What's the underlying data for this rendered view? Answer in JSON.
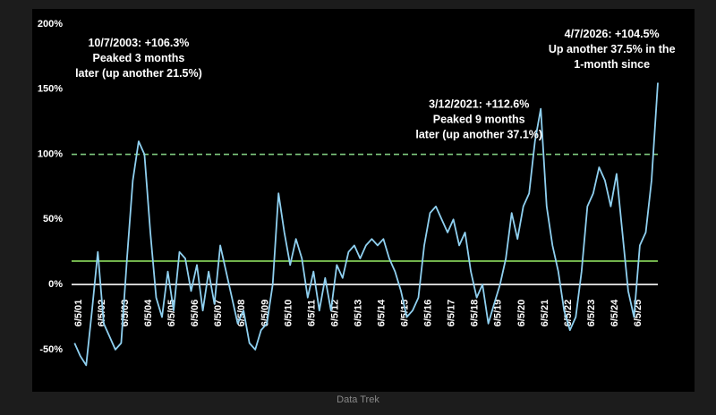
{
  "chart_data": {
    "type": "line",
    "source": "Data Trek",
    "annotations": [
      {
        "lines": [
          "10/7/2003: +106.3%",
          "Peaked 3 months",
          "later (up another 21.5%)"
        ],
        "x": 2004.0,
        "y": 185
      },
      {
        "lines": [
          "3/12/2021: +112.6%",
          "Peaked 9 months",
          "later (up another 37.1%)"
        ],
        "x": 2018.6,
        "y": 138
      },
      {
        "lines": [
          "4/7/2026: +104.5%",
          "Up another 37.5% in the",
          "1-month since"
        ],
        "x": 2024.3,
        "y": 192
      }
    ],
    "x": [
      2001.25,
      2001.5,
      2001.75,
      2002.0,
      2002.25,
      2002.5,
      2002.75,
      2003.0,
      2003.25,
      2003.5,
      2003.75,
      2004.0,
      2004.25,
      2004.5,
      2004.75,
      2005.0,
      2005.25,
      2005.5,
      2005.75,
      2006.0,
      2006.25,
      2006.5,
      2006.75,
      2007.0,
      2007.25,
      2007.5,
      2007.75,
      2008.0,
      2008.25,
      2008.5,
      2008.75,
      2009.0,
      2009.25,
      2009.5,
      2009.75,
      2010.0,
      2010.25,
      2010.5,
      2010.75,
      2011.0,
      2011.25,
      2011.5,
      2011.75,
      2012.0,
      2012.25,
      2012.5,
      2012.75,
      2013.0,
      2013.25,
      2013.5,
      2013.75,
      2014.0,
      2014.25,
      2014.5,
      2014.75,
      2015.0,
      2015.25,
      2015.5,
      2015.75,
      2016.0,
      2016.25,
      2016.5,
      2016.75,
      2017.0,
      2017.25,
      2017.5,
      2017.75,
      2018.0,
      2018.25,
      2018.5,
      2018.75,
      2019.0,
      2019.25,
      2019.5,
      2019.75,
      2020.0,
      2020.25,
      2020.5,
      2020.75,
      2021.0,
      2021.25,
      2021.5,
      2021.75,
      2022.0,
      2022.25,
      2022.5,
      2022.75,
      2023.0,
      2023.25,
      2023.5,
      2023.75,
      2024.0,
      2024.25,
      2024.5,
      2024.75,
      2025.0,
      2025.25,
      2025.5,
      2025.75,
      2026.0,
      2026.27
    ],
    "series": [
      {
        "color": "#8fd0f0",
        "values": [
          -45,
          -55,
          -62,
          -20,
          25,
          -30,
          -40,
          -50,
          -45,
          20,
          80,
          110,
          100,
          40,
          -10,
          -25,
          10,
          -20,
          25,
          20,
          -5,
          15,
          -20,
          10,
          -15,
          30,
          10,
          -10,
          -30,
          -20,
          -45,
          -50,
          -35,
          -30,
          0,
          70,
          40,
          15,
          35,
          20,
          -10,
          10,
          -20,
          5,
          -20,
          15,
          5,
          25,
          30,
          20,
          30,
          35,
          30,
          35,
          20,
          10,
          -5,
          -25,
          -20,
          -10,
          30,
          55,
          60,
          50,
          40,
          50,
          30,
          40,
          10,
          -10,
          0,
          -30,
          -15,
          0,
          20,
          55,
          35,
          60,
          70,
          110,
          135,
          60,
          30,
          10,
          -20,
          -35,
          -25,
          10,
          60,
          70,
          90,
          80,
          60,
          85,
          40,
          -5,
          -25,
          30,
          40,
          80,
          155
        ]
      }
    ],
    "reference_lines": [
      {
        "value": 100,
        "color": "#7fc97f",
        "style": "dashed"
      },
      {
        "value": 18,
        "color": "#8fe060",
        "style": "solid"
      },
      {
        "value": 0,
        "color": "#ffffff",
        "style": "solid"
      }
    ],
    "xlim": [
      2001.2,
      2026.27
    ],
    "xticks": [
      {
        "value": 2001.43,
        "label": "6/5/01"
      },
      {
        "value": 2002.43,
        "label": "6/5/02"
      },
      {
        "value": 2003.43,
        "label": "6/5/03"
      },
      {
        "value": 2004.43,
        "label": "6/5/04"
      },
      {
        "value": 2005.43,
        "label": "6/5/05"
      },
      {
        "value": 2006.43,
        "label": "6/5/06"
      },
      {
        "value": 2007.43,
        "label": "6/5/07"
      },
      {
        "value": 2008.43,
        "label": "6/5/08"
      },
      {
        "value": 2009.43,
        "label": "6/5/09"
      },
      {
        "value": 2010.43,
        "label": "6/5/10"
      },
      {
        "value": 2011.43,
        "label": "6/5/11"
      },
      {
        "value": 2012.43,
        "label": "6/5/12"
      },
      {
        "value": 2013.43,
        "label": "6/5/13"
      },
      {
        "value": 2014.43,
        "label": "6/5/14"
      },
      {
        "value": 2015.43,
        "label": "6/5/15"
      },
      {
        "value": 2016.43,
        "label": "6/5/16"
      },
      {
        "value": 2017.43,
        "label": "6/5/17"
      },
      {
        "value": 2018.43,
        "label": "6/5/18"
      },
      {
        "value": 2019.43,
        "label": "6/5/19"
      },
      {
        "value": 2020.43,
        "label": "6/5/20"
      },
      {
        "value": 2021.43,
        "label": "6/5/21"
      },
      {
        "value": 2022.43,
        "label": "6/5/22"
      },
      {
        "value": 2023.43,
        "label": "6/5/23"
      },
      {
        "value": 2024.43,
        "label": "6/5/24"
      },
      {
        "value": 2025.43,
        "label": "6/5/25"
      }
    ],
    "ylim": [
      -70,
      200
    ],
    "yticks": [
      {
        "value": -50,
        "label": "-50%"
      },
      {
        "value": 0,
        "label": "0%"
      },
      {
        "value": 50,
        "label": "50%"
      },
      {
        "value": 100,
        "label": "100%"
      },
      {
        "value": 150,
        "label": "150%"
      },
      {
        "value": 200,
        "label": "200%"
      }
    ]
  }
}
